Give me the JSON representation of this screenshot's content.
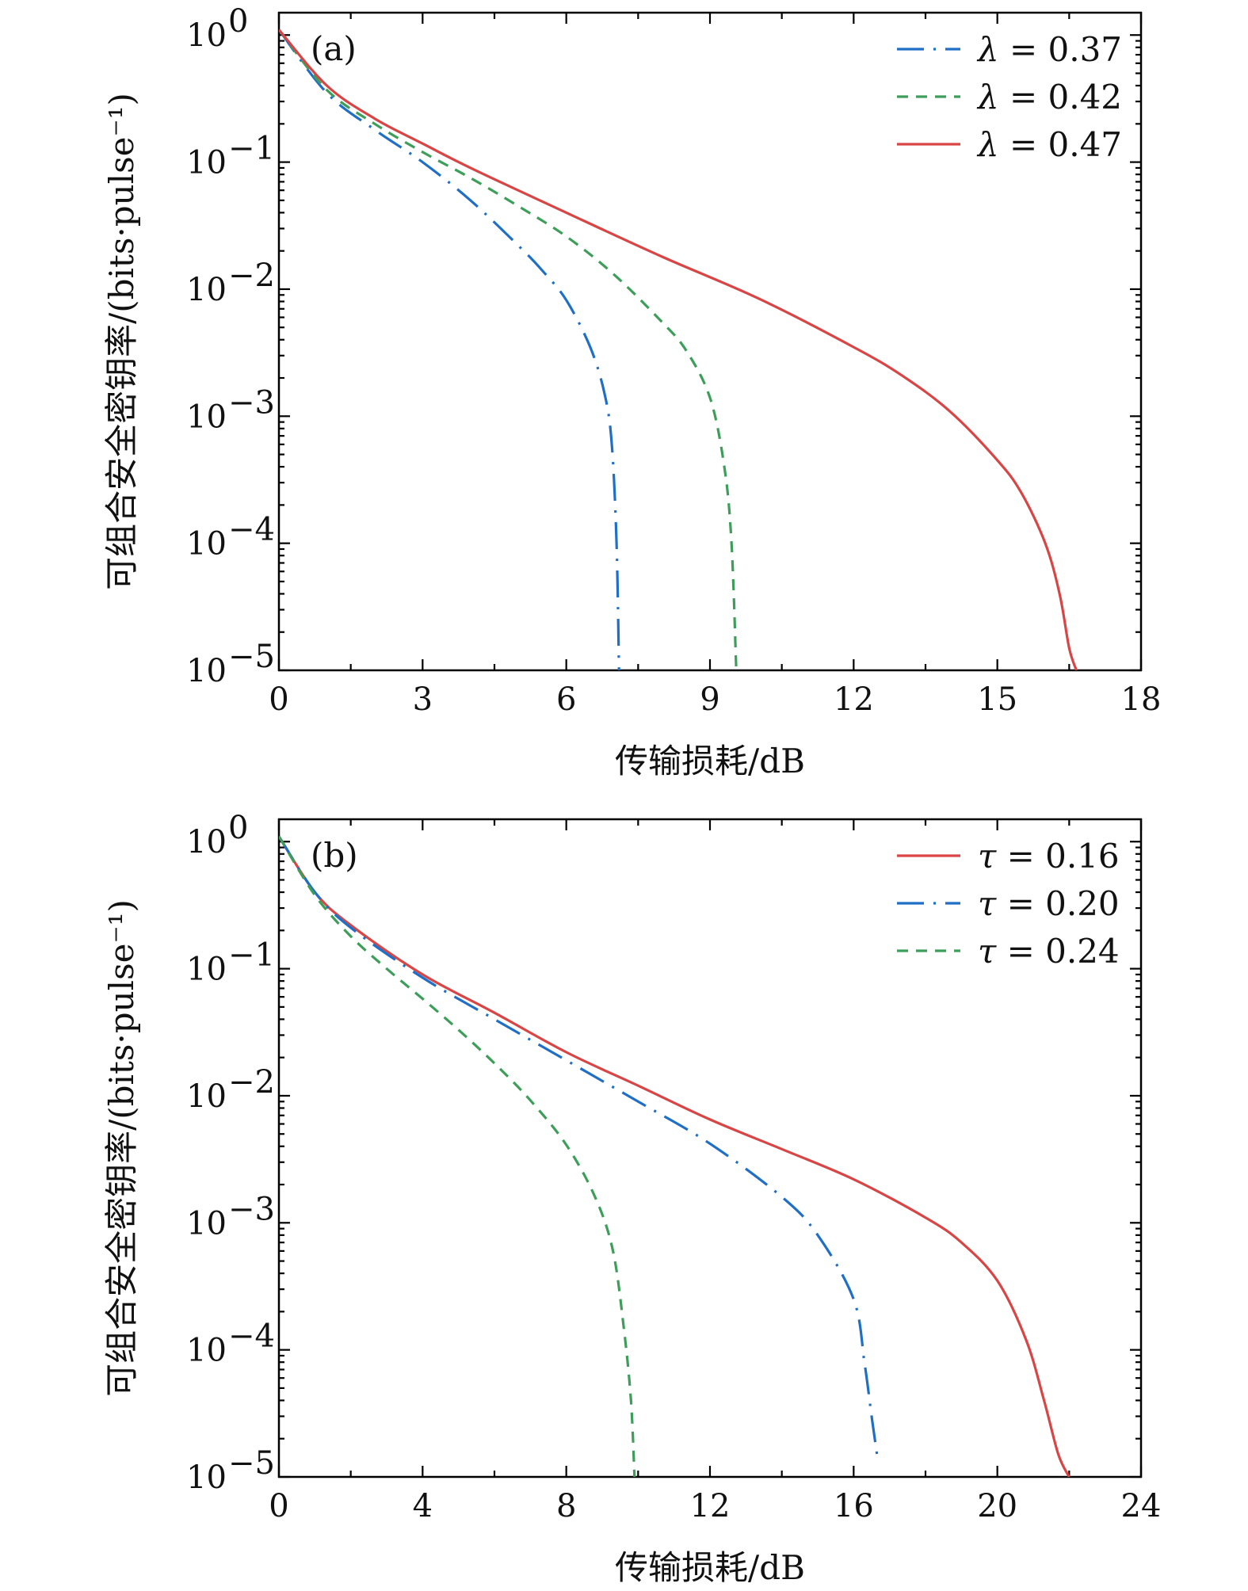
{
  "chart_data": [
    {
      "type": "line",
      "panel_label": "(a)",
      "xlabel": "传输损耗/dB",
      "ylabel": "可组合安全密钥率/(bits·pulse⁻¹)",
      "xlim": [
        0,
        18
      ],
      "ylim": [
        1e-05,
        1.5
      ],
      "yscale": "log",
      "x_ticks": [
        "0",
        "3",
        "6",
        "9",
        "12",
        "15",
        "18"
      ],
      "x_tick_values": [
        0,
        3,
        6,
        9,
        12,
        15,
        18
      ],
      "y_tick_exponents": [
        "0",
        "−1",
        "−2",
        "−3",
        "−4",
        "−5"
      ],
      "y_tick_values": [
        1,
        0.1,
        0.01,
        0.001,
        0.0001,
        1e-05
      ],
      "legend_position": "top-right",
      "series": [
        {
          "name": "λ = 0.37",
          "symbol": "λ",
          "value": "= 0.37",
          "color": "#1f6fc7",
          "dash": "dashdot",
          "x": [
            0,
            1,
            2,
            3,
            4,
            5,
            5.5,
            6,
            6.5,
            6.8,
            6.95,
            7.05,
            7.1
          ],
          "y": [
            1.1,
            0.35,
            0.18,
            0.1,
            0.05,
            0.022,
            0.014,
            0.0082,
            0.0035,
            0.0015,
            0.0006,
            0.0001,
            1e-05
          ]
        },
        {
          "name": "λ = 0.42",
          "symbol": "λ",
          "value": "= 0.42",
          "color": "#3d9e5a",
          "dash": "dashed",
          "x": [
            0,
            1,
            2,
            3,
            4,
            5,
            6,
            7,
            8,
            8.5,
            9,
            9.3,
            9.45,
            9.55
          ],
          "y": [
            1.1,
            0.37,
            0.2,
            0.12,
            0.075,
            0.045,
            0.026,
            0.013,
            0.0055,
            0.0033,
            0.0014,
            0.0004,
            0.0001,
            1e-05
          ]
        },
        {
          "name": "λ = 0.47",
          "symbol": "λ",
          "value": "= 0.47",
          "color": "#d94545",
          "dash": "solid",
          "x": [
            0,
            1,
            2,
            3,
            4,
            6,
            8,
            10,
            12,
            13,
            14,
            15,
            15.5,
            16,
            16.3,
            16.5,
            16.65
          ],
          "y": [
            1.1,
            0.4,
            0.22,
            0.14,
            0.09,
            0.04,
            0.018,
            0.0085,
            0.0035,
            0.0021,
            0.0011,
            0.00045,
            0.00025,
            0.0001,
            4e-05,
            1.5e-05,
            1e-05
          ]
        }
      ]
    },
    {
      "type": "line",
      "panel_label": "(b)",
      "xlabel": "传输损耗/dB",
      "ylabel": "可组合安全密钥率/(bits·pulse⁻¹)",
      "xlim": [
        0,
        24
      ],
      "ylim": [
        1e-05,
        1.5
      ],
      "yscale": "log",
      "x_ticks": [
        "0",
        "4",
        "8",
        "12",
        "16",
        "20",
        "24"
      ],
      "x_tick_values": [
        0,
        4,
        8,
        12,
        16,
        20,
        24
      ],
      "y_tick_exponents": [
        "0",
        "−1",
        "−2",
        "−3",
        "−4",
        "−5"
      ],
      "y_tick_values": [
        1,
        0.1,
        0.01,
        0.001,
        0.0001,
        1e-05
      ],
      "legend_position": "top-right",
      "series": [
        {
          "name": "τ = 0.16",
          "symbol": "τ",
          "value": "= 0.16",
          "color": "#d94545",
          "dash": "solid",
          "x": [
            0,
            1,
            2,
            4,
            6,
            8,
            10,
            12,
            14,
            16,
            18,
            19,
            20,
            20.8,
            21.3,
            21.7,
            22
          ],
          "y": [
            1.1,
            0.4,
            0.22,
            0.09,
            0.045,
            0.022,
            0.012,
            0.0065,
            0.0038,
            0.0022,
            0.0011,
            0.0007,
            0.00035,
            0.00012,
            4e-05,
            1.5e-05,
            1e-05
          ]
        },
        {
          "name": "τ = 0.20",
          "symbol": "τ",
          "value": "= 0.20",
          "color": "#1f6fc7",
          "dash": "dashdot",
          "x": [
            0,
            1,
            2,
            4,
            6,
            8,
            10,
            12,
            14,
            15,
            16,
            16.3,
            16.5,
            16.65
          ],
          "y": [
            1.1,
            0.4,
            0.21,
            0.085,
            0.04,
            0.019,
            0.009,
            0.0042,
            0.0016,
            0.0008,
            0.00025,
            8e-05,
            3e-05,
            1.5e-05
          ]
        },
        {
          "name": "τ = 0.24",
          "symbol": "τ",
          "value": "= 0.24",
          "color": "#3d9e5a",
          "dash": "dashed",
          "x": [
            0,
            1,
            2,
            3,
            4,
            5,
            6,
            7,
            8,
            8.8,
            9.3,
            9.6,
            9.8,
            9.9
          ],
          "y": [
            1.1,
            0.38,
            0.18,
            0.1,
            0.058,
            0.033,
            0.018,
            0.0092,
            0.0041,
            0.0016,
            0.0006,
            0.00015,
            4e-05,
            1e-05
          ]
        }
      ]
    }
  ]
}
